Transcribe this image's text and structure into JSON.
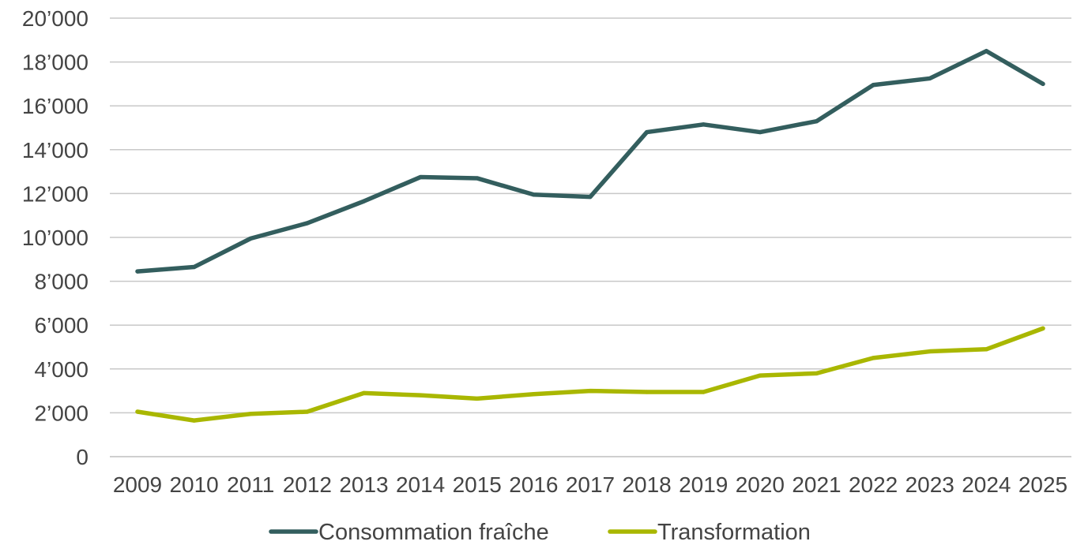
{
  "chart_data": {
    "type": "line",
    "title": "",
    "xlabel": "",
    "ylabel": "",
    "categories": [
      "2009",
      "2010",
      "2011",
      "2012",
      "2013",
      "2014",
      "2015",
      "2016",
      "2017",
      "2018",
      "2019",
      "2020",
      "2021",
      "2022",
      "2023",
      "2024",
      "2025"
    ],
    "ylim": [
      0,
      20000
    ],
    "y_ticks": [
      {
        "value": 0,
        "label": "0"
      },
      {
        "value": 2000,
        "label": "2’000"
      },
      {
        "value": 4000,
        "label": "4’000"
      },
      {
        "value": 6000,
        "label": "6’000"
      },
      {
        "value": 8000,
        "label": "8’000"
      },
      {
        "value": 10000,
        "label": "10’000"
      },
      {
        "value": 12000,
        "label": "12’000"
      },
      {
        "value": 14000,
        "label": "14’000"
      },
      {
        "value": 16000,
        "label": "16’000"
      },
      {
        "value": 18000,
        "label": "18’000"
      },
      {
        "value": 20000,
        "label": "20’000"
      }
    ],
    "grid": "horizontal",
    "legend_position": "bottom",
    "series": [
      {
        "name": "Consommation fraîche",
        "color": "#335e5e",
        "values": [
          8450,
          8650,
          9950,
          10650,
          11650,
          12750,
          12700,
          11950,
          11850,
          14800,
          15150,
          14800,
          15300,
          16950,
          17250,
          18500,
          17000
        ]
      },
      {
        "name": "Transformation",
        "color": "#a9b700",
        "values": [
          2050,
          1650,
          1950,
          2050,
          2900,
          2800,
          2650,
          2850,
          3000,
          2950,
          2950,
          3700,
          3800,
          4500,
          4800,
          4900,
          5850
        ]
      }
    ]
  }
}
